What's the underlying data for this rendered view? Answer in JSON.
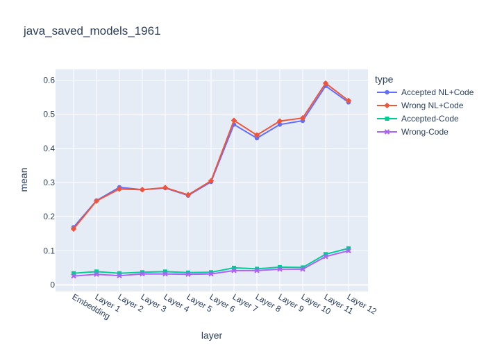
{
  "chart_data": {
    "type": "line",
    "title": "java_saved_models_1961",
    "xlabel": "layer",
    "ylabel": "mean",
    "ylim": [
      -0.015,
      0.63
    ],
    "yticks": [
      0,
      0.1,
      0.2,
      0.3,
      0.4,
      0.5,
      0.6
    ],
    "ytick_labels": [
      "0",
      "0.1",
      "0.2",
      "0.3",
      "0.4",
      "0.5",
      "0.6"
    ],
    "categories": [
      "Embedding",
      "Layer 1",
      "Layer 2",
      "Layer 3",
      "Layer 4",
      "Layer 5",
      "Layer 6",
      "Layer 7",
      "Layer 8",
      "Layer 9",
      "Layer 10",
      "Layer 11",
      "Layer 12"
    ],
    "grid": true,
    "legend": {
      "title": "type",
      "position": "right"
    },
    "series": [
      {
        "name": "Accepted NL+Code",
        "color": "#636efa",
        "marker": "circle",
        "values": [
          0.169,
          0.247,
          0.286,
          0.279,
          0.284,
          0.262,
          0.302,
          0.47,
          0.43,
          0.47,
          0.481,
          0.583,
          0.535
        ]
      },
      {
        "name": "Wrong NL+Code",
        "color": "#ef553b",
        "marker": "diamond",
        "values": [
          0.164,
          0.246,
          0.281,
          0.279,
          0.285,
          0.264,
          0.305,
          0.482,
          0.439,
          0.48,
          0.489,
          0.591,
          0.54
        ]
      },
      {
        "name": "Accepted-Code",
        "color": "#00cc96",
        "marker": "square",
        "values": [
          0.034,
          0.039,
          0.034,
          0.037,
          0.039,
          0.036,
          0.037,
          0.05,
          0.047,
          0.052,
          0.051,
          0.09,
          0.107
        ]
      },
      {
        "name": "Wrong-Code",
        "color": "#ab63fa",
        "marker": "x",
        "values": [
          0.026,
          0.031,
          0.027,
          0.032,
          0.032,
          0.031,
          0.032,
          0.042,
          0.042,
          0.046,
          0.046,
          0.083,
          0.1
        ]
      }
    ]
  }
}
